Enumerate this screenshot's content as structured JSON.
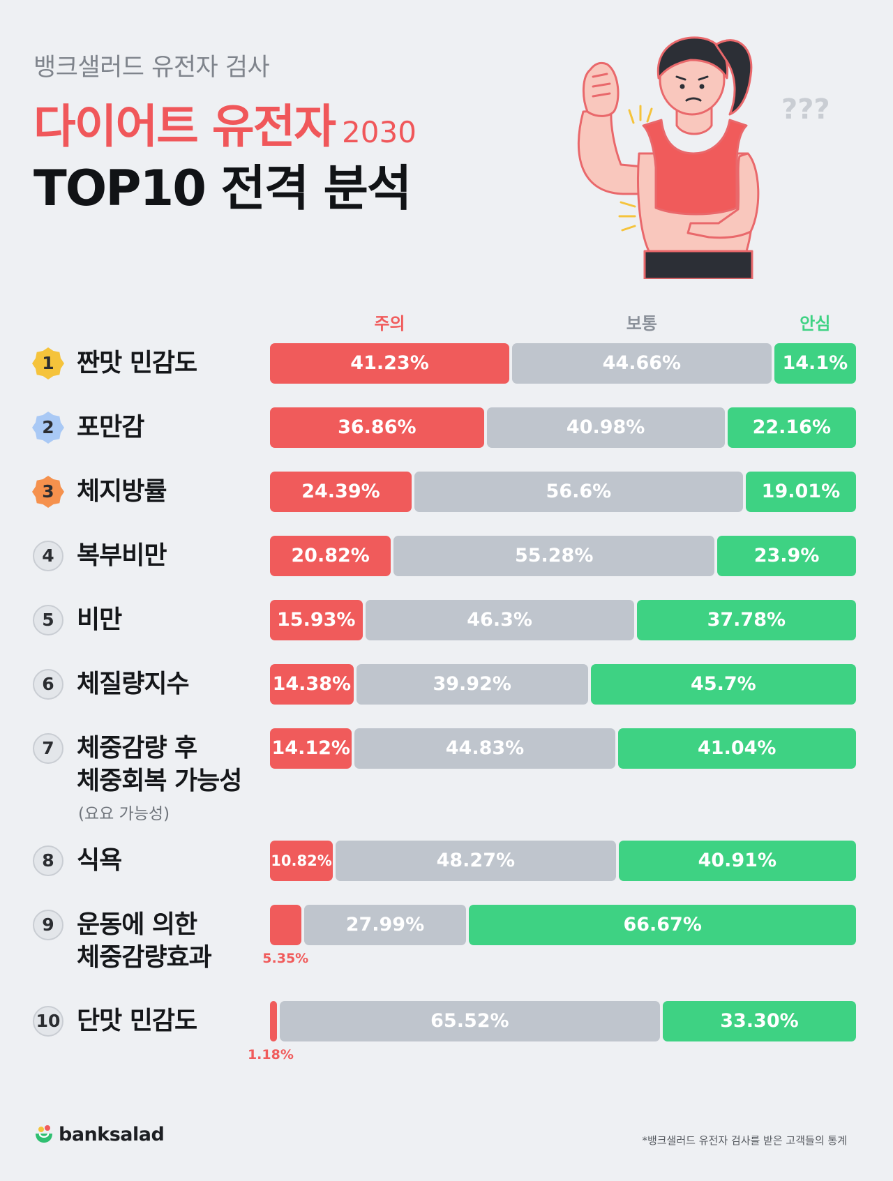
{
  "header": {
    "kicker": "뱅크샐러드 유전자 검사",
    "title": "다이어트 유전자",
    "year": "2030",
    "subtitle": "TOP10 전격 분석"
  },
  "colors": {
    "caution": "#f05b5b",
    "normal": "#bfc5cd",
    "safe": "#3ed283",
    "gold": "#f5c33b",
    "blue": "#a9c9f5",
    "orange": "#f5914d"
  },
  "chart_data": {
    "type": "bar",
    "stacked": true,
    "orientation": "horizontal",
    "series_names": [
      "주의",
      "보통",
      "안심"
    ],
    "categories": [
      {
        "rank": "1",
        "label": [
          "짠맛 민감도"
        ],
        "sub": "",
        "badge": "gold",
        "values": [
          41.23,
          44.66,
          14.1
        ],
        "texts": [
          "41.23%",
          "44.66%",
          "14.1%"
        ]
      },
      {
        "rank": "2",
        "label": [
          "포만감"
        ],
        "sub": "",
        "badge": "blue",
        "values": [
          36.86,
          40.98,
          22.16
        ],
        "texts": [
          "36.86%",
          "40.98%",
          "22.16%"
        ]
      },
      {
        "rank": "3",
        "label": [
          "체지방률"
        ],
        "sub": "",
        "badge": "orange",
        "values": [
          24.39,
          56.6,
          19.01
        ],
        "texts": [
          "24.39%",
          "56.6%",
          "19.01%"
        ]
      },
      {
        "rank": "4",
        "label": [
          "복부비만"
        ],
        "sub": "",
        "badge": "plain",
        "values": [
          20.82,
          55.28,
          23.9
        ],
        "texts": [
          "20.82%",
          "55.28%",
          "23.9%"
        ]
      },
      {
        "rank": "5",
        "label": [
          "비만"
        ],
        "sub": "",
        "badge": "plain",
        "values": [
          15.93,
          46.3,
          37.78
        ],
        "texts": [
          "15.93%",
          "46.3%",
          "37.78%"
        ]
      },
      {
        "rank": "6",
        "label": [
          "체질량지수"
        ],
        "sub": "",
        "badge": "plain",
        "values": [
          14.38,
          39.92,
          45.7
        ],
        "texts": [
          "14.38%",
          "39.92%",
          "45.7%"
        ]
      },
      {
        "rank": "7",
        "label": [
          "체중감량 후",
          "체중회복 가능성"
        ],
        "sub": "(요요 가능성)",
        "badge": "plain",
        "values": [
          14.12,
          44.83,
          41.04
        ],
        "texts": [
          "14.12%",
          "44.83%",
          "41.04%"
        ]
      },
      {
        "rank": "8",
        "label": [
          "식욕"
        ],
        "sub": "",
        "badge": "plain",
        "values": [
          10.82,
          48.27,
          40.91
        ],
        "texts": [
          "10.82%",
          "48.27%",
          "40.91%"
        ]
      },
      {
        "rank": "9",
        "label": [
          "운동에 의한",
          "체중감량효과"
        ],
        "sub": "",
        "badge": "plain",
        "values": [
          5.35,
          27.99,
          66.67
        ],
        "texts": [
          "5.35%",
          "27.99%",
          "66.67%"
        ]
      },
      {
        "rank": "10",
        "label": [
          "단맛 민감도"
        ],
        "sub": "",
        "badge": "plain",
        "values": [
          1.18,
          65.52,
          33.3
        ],
        "texts": [
          "1.18%",
          "65.52%",
          "33.30%"
        ]
      }
    ]
  },
  "footer": {
    "brand": "banksalad",
    "note": "*뱅크샐러드 유전자 검사를 받은 고객들의 통계"
  },
  "illustration": {
    "question_marks": "???"
  }
}
